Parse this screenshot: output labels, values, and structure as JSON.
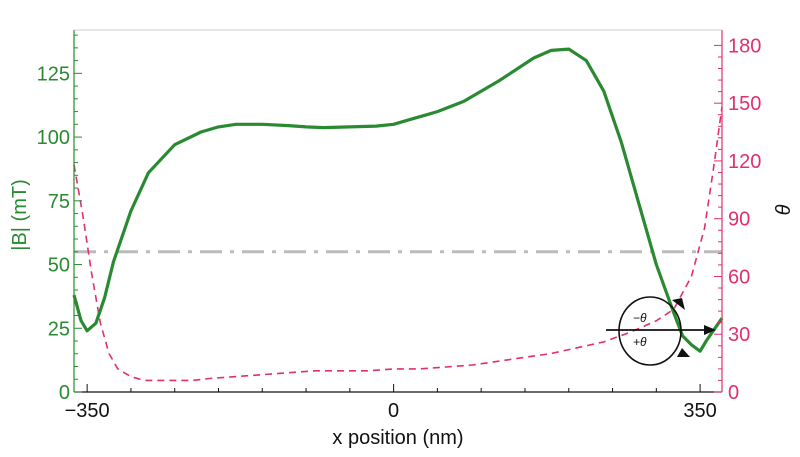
{
  "chart_data": {
    "type": "line",
    "xlabel": "x position (nm)",
    "ylabel_left": "|B| (mT)",
    "ylabel_right": "θ",
    "xlim": [
      -365,
      375
    ],
    "ylim_left": [
      0,
      142
    ],
    "ylim_right": [
      0,
      188
    ],
    "x_ticks": [
      -350,
      0,
      350
    ],
    "y_ticks_left": [
      0,
      25,
      50,
      75,
      100,
      125
    ],
    "y_ticks_right": [
      0,
      30,
      60,
      90,
      120,
      150,
      180
    ],
    "threshold": {
      "value": 55,
      "axis": "left"
    },
    "colors": {
      "B": "#2a8a32",
      "theta": "#e0306e",
      "threshold": "#bbbbbb",
      "axes_left": "#2a8a32",
      "axes_right": "#e0306e"
    },
    "series": [
      {
        "axis": "left",
        "x": [
          -365,
          -357,
          -350,
          -340,
          -330,
          -320,
          -300,
          -280,
          -250,
          -220,
          -200,
          -180,
          -150,
          -120,
          -100,
          -80,
          -50,
          -20,
          0,
          20,
          35,
          50,
          80,
          120,
          160,
          180,
          200,
          220,
          240,
          260,
          280,
          300,
          320,
          330,
          340,
          350,
          357,
          365,
          375
        ],
        "values": [
          38,
          28,
          24,
          27,
          37,
          51,
          71,
          86,
          97,
          102,
          104,
          105,
          105,
          104.5,
          104,
          103.7,
          104,
          104.3,
          105,
          107,
          108.5,
          110,
          114,
          122,
          131,
          134,
          134.5,
          130,
          118,
          98,
          74,
          50,
          31,
          22,
          18.5,
          16,
          20,
          24,
          29
        ]
      },
      {
        "axis": "right",
        "x": [
          -365,
          -355,
          -345,
          -335,
          -325,
          -315,
          -300,
          -285,
          -270,
          -250,
          -230,
          -210,
          -180,
          -150,
          -120,
          -90,
          -60,
          -30,
          0,
          30,
          60,
          90,
          120,
          150,
          180,
          210,
          240,
          270,
          300,
          320,
          340,
          355,
          365,
          375
        ],
        "values": [
          118,
          92,
          62,
          36,
          20,
          12,
          8,
          6,
          6,
          6,
          6,
          7,
          8,
          9,
          10,
          11,
          11,
          11,
          12,
          12,
          13,
          14,
          16,
          18,
          20,
          23,
          26,
          31,
          37,
          43,
          60,
          85,
          115,
          148
        ]
      }
    ],
    "inset": {
      "labels": [
        "−θ",
        "+θ"
      ]
    }
  }
}
